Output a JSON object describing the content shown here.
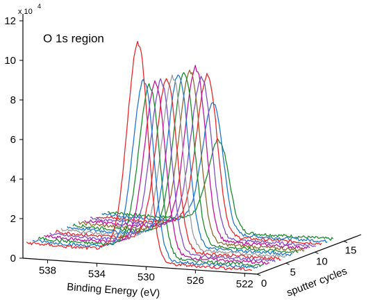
{
  "chart_data": {
    "type": "line",
    "title": "",
    "annotation": "O 1s region",
    "xlabel": "Binding Energy (eV)",
    "ylabel": "",
    "zlabel": "sputter cycles",
    "x_ticks": [
      "538",
      "534",
      "530",
      "526",
      "522"
    ],
    "y_ticks": [
      "0",
      "2",
      "4",
      "6",
      "8",
      "10",
      "12"
    ],
    "z_ticks": [
      "0",
      "5",
      "10",
      "15"
    ],
    "y_multiplier": "x 10",
    "y_multiplier_exp": "4",
    "xlim": [
      540,
      521
    ],
    "ylim": [
      0,
      120000
    ],
    "zlim": [
      0,
      18
    ],
    "peak_center_eV": 530.6,
    "series": [
      {
        "cycle": 0,
        "peak": 110000,
        "color": "#e8262a"
      },
      {
        "cycle": 1,
        "peak": 90000,
        "color": "#1f77d0"
      },
      {
        "cycle": 2,
        "peak": 86000,
        "color": "#1b8a2e"
      },
      {
        "cycle": 3,
        "peak": 86000,
        "color": "#c0149a"
      },
      {
        "cycle": 4,
        "peak": 86000,
        "color": "#7a4fc8"
      },
      {
        "cycle": 5,
        "peak": 86000,
        "color": "#e8262a"
      },
      {
        "cycle": 6,
        "peak": 86000,
        "color": "#9a9a9a"
      },
      {
        "cycle": 7,
        "peak": 86000,
        "color": "#1f77d0"
      },
      {
        "cycle": 8,
        "peak": 86000,
        "color": "#1b8a2e"
      },
      {
        "cycle": 9,
        "peak": 86000,
        "color": "#8b6a2a"
      },
      {
        "cycle": 10,
        "peak": 86000,
        "color": "#c0149a"
      },
      {
        "cycle": 11,
        "peak": 80000,
        "color": "#7a4fc8"
      },
      {
        "cycle": 12,
        "peak": 80000,
        "color": "#e8262a"
      },
      {
        "cycle": 13,
        "peak": 65000,
        "color": "#1f77d0"
      },
      {
        "cycle": 14,
        "peak": 45000,
        "color": "#1b8a2e"
      }
    ]
  }
}
